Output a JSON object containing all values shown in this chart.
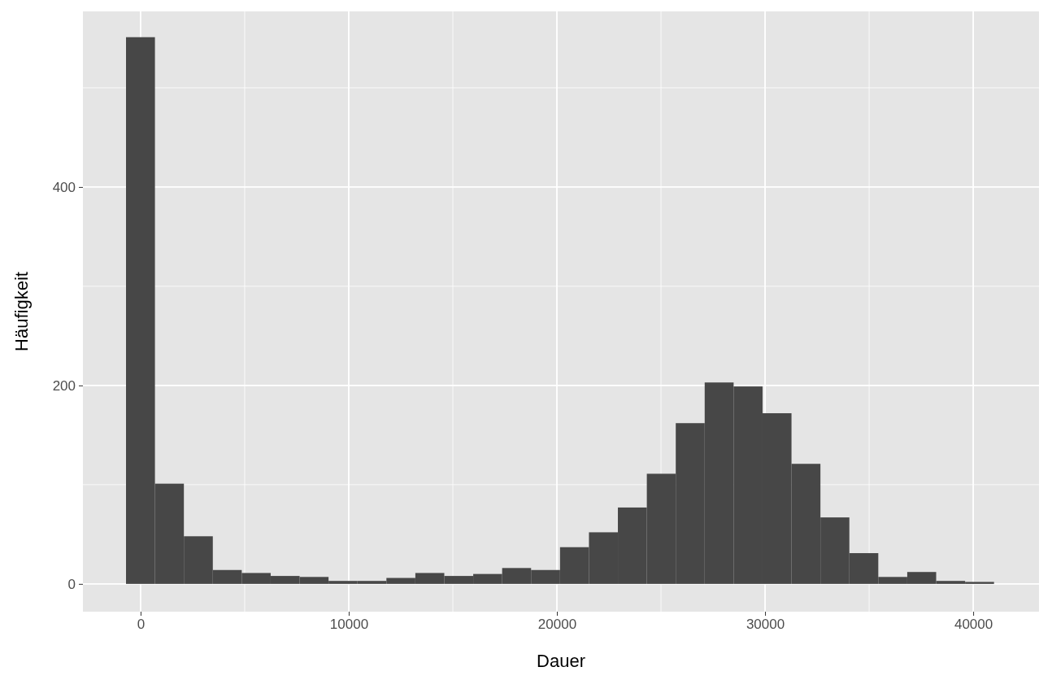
{
  "chart_data": {
    "type": "histogram",
    "xlabel": "Dauer",
    "ylabel": "Häufigkeit",
    "color": "#474747",
    "bins": [
      -700,
      690,
      2080,
      3470,
      4860,
      6250,
      7640,
      9030,
      10420,
      11810,
      13200,
      14590,
      15980,
      17370,
      18760,
      20150,
      21540,
      22930,
      24320,
      25710,
      27100,
      28490,
      29880,
      31270,
      32660,
      34050,
      35440,
      36830,
      38220,
      39610,
      41000
    ],
    "values": [
      551,
      101,
      48,
      14,
      11,
      8,
      7,
      3,
      3,
      6,
      11,
      8,
      10,
      16,
      14,
      37,
      52,
      77,
      111,
      162,
      203,
      199,
      172,
      121,
      67,
      31,
      7,
      12,
      3,
      2
    ],
    "xlim": [
      -2770,
      43160
    ],
    "ylim": [
      -28,
      577
    ],
    "xticks": [
      0,
      10000,
      20000,
      30000,
      40000
    ],
    "yticks": [
      0,
      200,
      400
    ],
    "grid": true
  }
}
